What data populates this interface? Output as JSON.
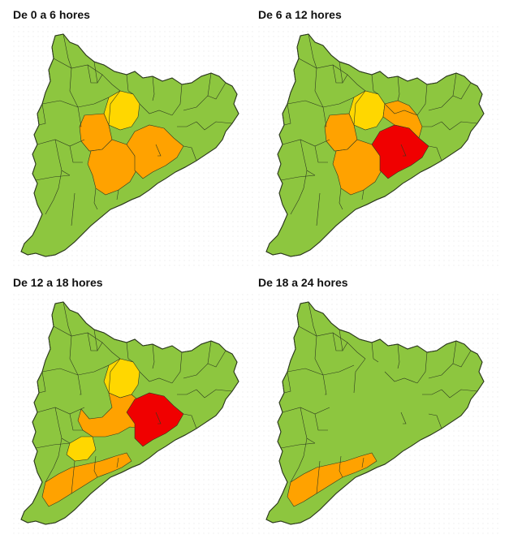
{
  "colors": {
    "green": "#8dc63f",
    "yellow": "#ffd700",
    "orange": "#ffa200",
    "red": "#f00000",
    "border": "#2e3b1f"
  },
  "panels": [
    {
      "title": "De 0 a 6 hores",
      "zones": [
        {
          "name": "central-upper",
          "level": "yellow"
        },
        {
          "name": "central-west",
          "level": "orange"
        },
        {
          "name": "central-south",
          "level": "orange"
        },
        {
          "name": "coast-barcelona",
          "level": "orange"
        }
      ]
    },
    {
      "title": "De 6 a 12 hores",
      "zones": [
        {
          "name": "central-upper",
          "level": "yellow"
        },
        {
          "name": "central-west",
          "level": "orange"
        },
        {
          "name": "central-south",
          "level": "orange"
        },
        {
          "name": "coast-north",
          "level": "orange"
        },
        {
          "name": "coast-barcelona",
          "level": "red"
        }
      ]
    },
    {
      "title": "De 12 a 18 hores",
      "zones": [
        {
          "name": "central-upper",
          "level": "yellow"
        },
        {
          "name": "inland-west",
          "level": "yellow"
        },
        {
          "name": "central-band",
          "level": "orange"
        },
        {
          "name": "south-coast",
          "level": "orange"
        },
        {
          "name": "coast-barcelona",
          "level": "red"
        }
      ]
    },
    {
      "title": "De 18 a 24 hores",
      "zones": [
        {
          "name": "south-coast",
          "level": "orange"
        }
      ]
    }
  ]
}
